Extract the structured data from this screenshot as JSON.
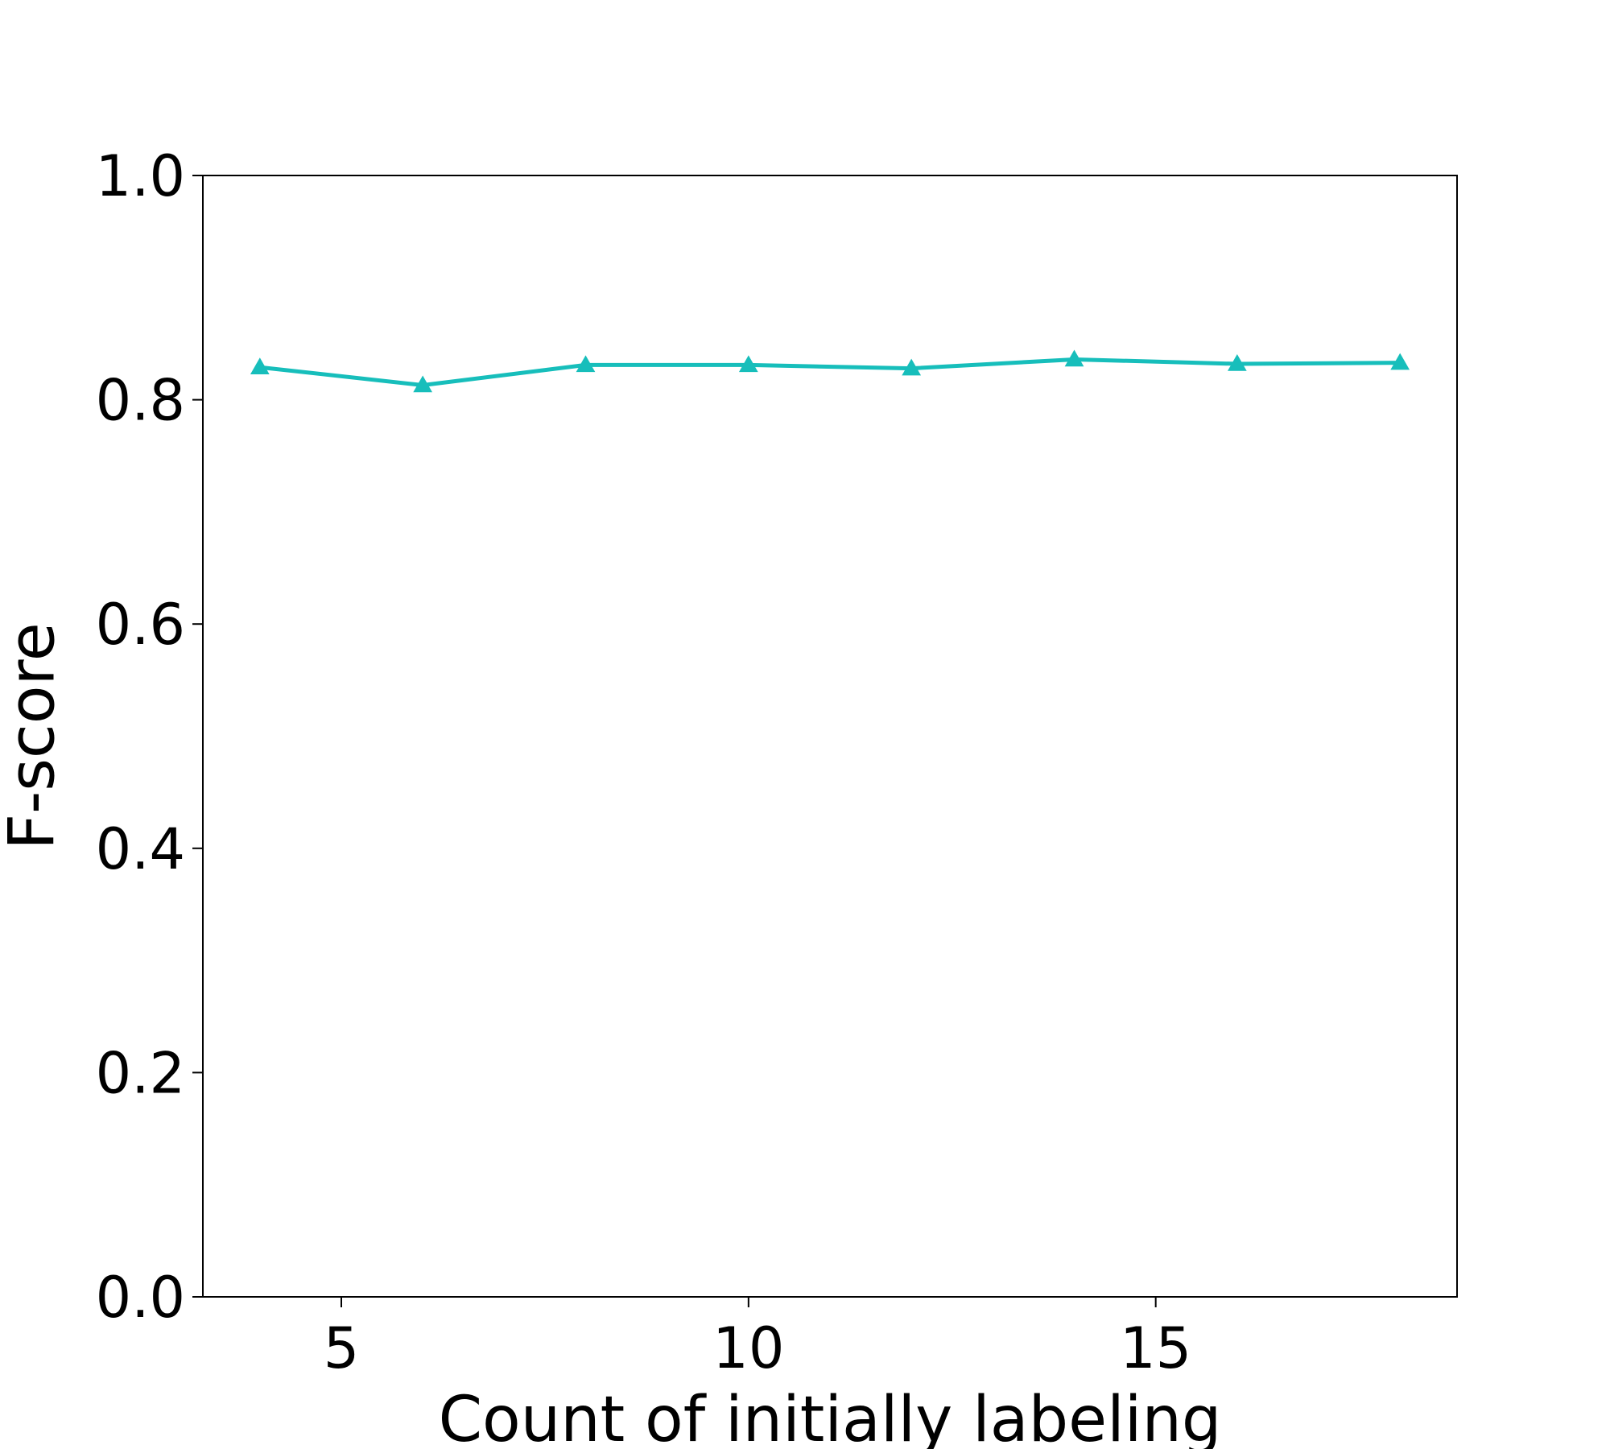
{
  "chart_data": {
    "type": "line",
    "title": "",
    "xlabel": "Count of initially labeling",
    "ylabel": "F-score",
    "xlim": [
      3.3,
      18.7
    ],
    "ylim": [
      0.0,
      1.0
    ],
    "xticks": [
      5,
      10,
      15
    ],
    "xtick_labels": [
      "5",
      "10",
      "15"
    ],
    "yticks": [
      0.0,
      0.2,
      0.4,
      0.6,
      0.8,
      1.0
    ],
    "ytick_labels": [
      "0.0",
      "0.2",
      "0.4",
      "0.6",
      "0.8",
      "1.0"
    ],
    "grid": false,
    "legend": "none",
    "series": [
      {
        "color": "#17bebb",
        "marker": "triangle",
        "x": [
          4,
          6,
          8,
          10,
          12,
          14,
          16,
          18
        ],
        "y": [
          0.829,
          0.813,
          0.831,
          0.831,
          0.828,
          0.836,
          0.832,
          0.833
        ]
      }
    ]
  }
}
